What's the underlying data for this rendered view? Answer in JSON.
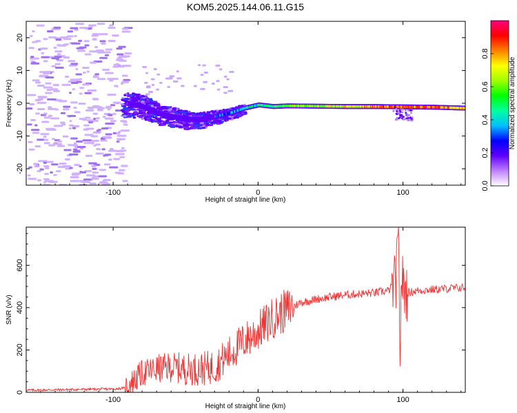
{
  "title": "KOM5.2025.144.06.11.G15",
  "chart_data": [
    {
      "type": "heatmap",
      "xlabel": "Height of straight line (km)",
      "ylabel": "Frequency (Hz)",
      "xlim": [
        -160,
        143
      ],
      "ylim": [
        -25,
        25
      ],
      "xticks": [
        -100,
        0,
        100
      ],
      "yticks": [
        -20,
        -10,
        0,
        10,
        20
      ],
      "colorbar": {
        "label": "Normalized spectral amplitude",
        "range": [
          0,
          1
        ],
        "ticks": [
          "0.0",
          "0.2",
          "0.4",
          "0.6",
          "0.8"
        ],
        "colors": [
          "#ffffff",
          "#c080ff",
          "#6000ff",
          "#0000ff",
          "#00c0ff",
          "#00ffa0",
          "#00ff00",
          "#a0ff00",
          "#ffff00",
          "#ff8000",
          "#ff0000",
          "#ff0080"
        ]
      },
      "frequency_ridge": {
        "height_km": [
          -90,
          -80,
          -70,
          -60,
          -50,
          -40,
          -30,
          -20,
          -10,
          0,
          10,
          20,
          40,
          60,
          80,
          100,
          120,
          143
        ],
        "frequency_hz": [
          0,
          -1,
          -3,
          -4,
          -5,
          -5,
          -4,
          -3,
          -1.5,
          -0.5,
          -1,
          -0.8,
          -0.9,
          -1,
          -1,
          -1.1,
          -1.2,
          -1.5
        ],
        "amplitude": [
          0.1,
          0.15,
          0.18,
          0.2,
          0.22,
          0.25,
          0.28,
          0.3,
          0.4,
          0.45,
          0.5,
          0.6,
          0.65,
          0.7,
          0.8,
          0.85,
          0.85,
          0.75
        ]
      }
    },
    {
      "type": "line",
      "xlabel": "Height of straight line (km)",
      "ylabel": "SNR (v/v)",
      "xlim": [
        -160,
        143
      ],
      "ylim": [
        0,
        780
      ],
      "xticks": [
        -100,
        0,
        100
      ],
      "yticks": [
        0,
        200,
        400,
        600
      ],
      "line_color": "#ee3333",
      "series": [
        {
          "x": [
            -160,
            -140,
            -120,
            -100,
            -92,
            -85,
            -80,
            -70,
            -60,
            -50,
            -40,
            -30,
            -20,
            -10,
            0,
            10,
            20,
            25,
            30,
            40,
            50,
            60,
            70,
            80,
            90,
            95,
            97,
            98,
            99,
            100,
            103,
            110,
            120,
            130,
            143
          ],
          "y": [
            10,
            12,
            14,
            16,
            20,
            60,
            90,
            110,
            120,
            110,
            110,
            120,
            180,
            240,
            290,
            350,
            390,
            410,
            425,
            440,
            450,
            460,
            465,
            470,
            480,
            520,
            700,
            180,
            560,
            500,
            470,
            480,
            485,
            490,
            495
          ]
        }
      ]
    }
  ]
}
